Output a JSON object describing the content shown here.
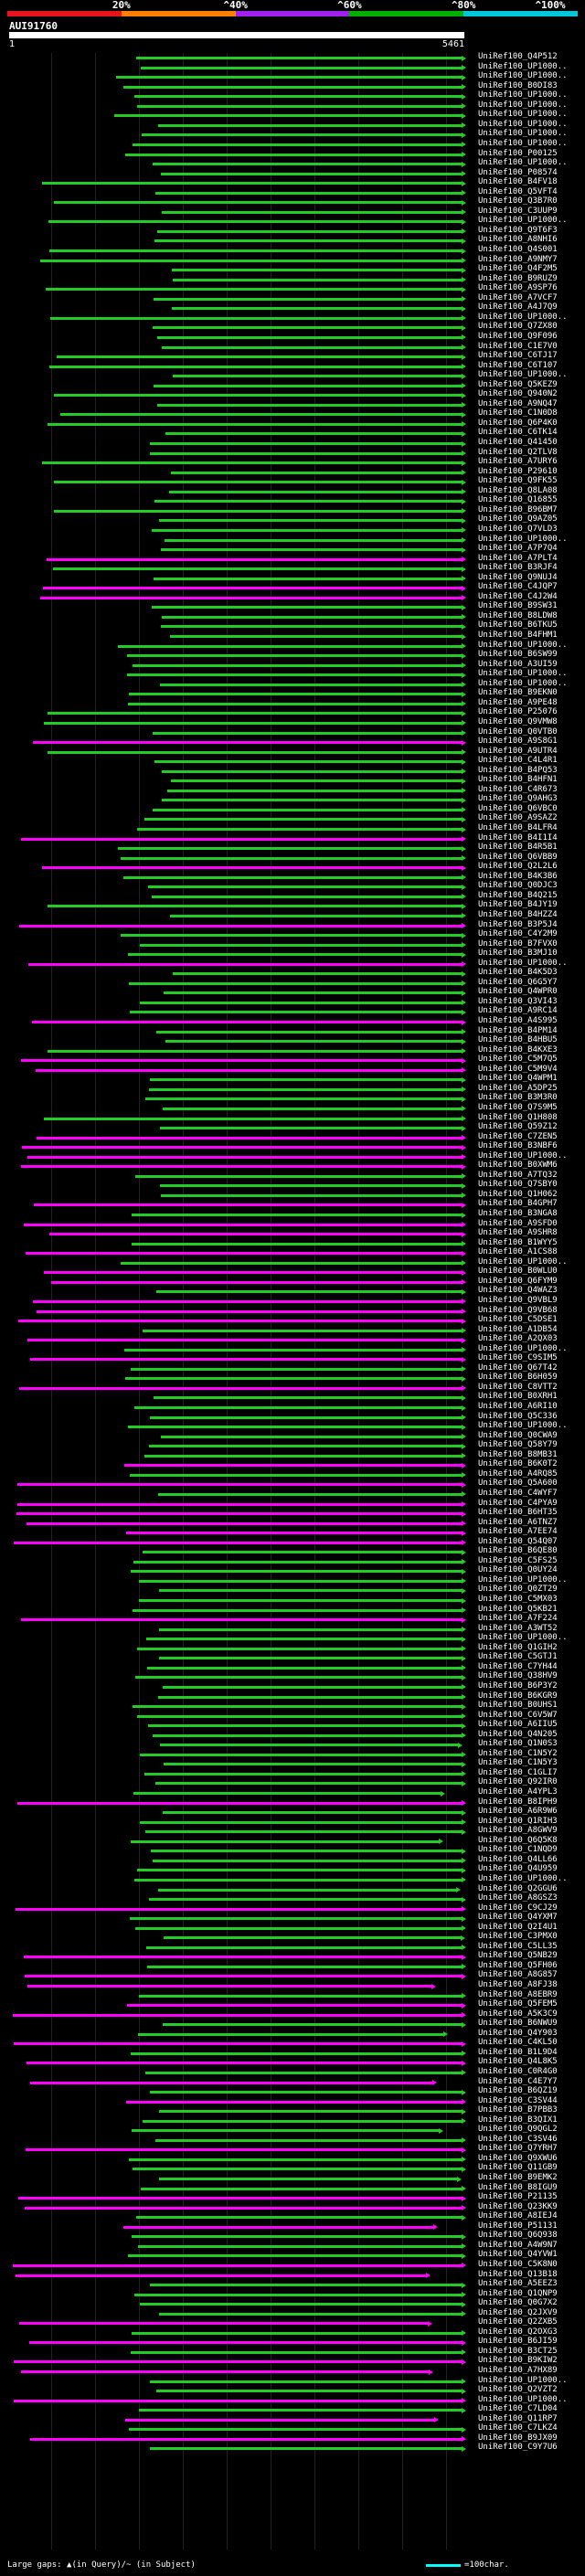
{
  "legend": {
    "labels": [
      "20%",
      "^40%",
      "^60%",
      "^80%",
      "^100%"
    ],
    "colors": [
      "#e8141d",
      "#ff8000",
      "#a020f0",
      "#00b000",
      "#00c8d8"
    ]
  },
  "query": {
    "id": "AUI91760",
    "start": "1",
    "end": "5461"
  },
  "hits": [
    "UniRef100_Q4P512",
    "UniRef100_UP1000..",
    "UniRef100_UP1000..",
    "UniRef100_B0DI83",
    "UniRef100_UP1000..",
    "UniRef100_UP1000..",
    "UniRef100_UP1000..",
    "UniRef100_UP1000..",
    "UniRef100_UP1000..",
    "UniRef100_UP1000..",
    "UniRef100_P00125",
    "UniRef100_UP1000..",
    "UniRef100_P08574",
    "UniRef100_B4FV18",
    "UniRef100_Q5VFT4",
    "UniRef100_Q3B7R0",
    "UniRef100_C3UUP9",
    "UniRef100_UP1000..",
    "UniRef100_Q9T6F3",
    "UniRef100_A8NHI6",
    "UniRef100_Q4S001",
    "UniRef100_A9NMY7",
    "UniRef100_Q4F2M5",
    "UniRef100_B9RUZ9",
    "UniRef100_A9SP76",
    "UniRef100_A7VCF7",
    "UniRef100_A4J7Q9",
    "UniRef100_UP1000..",
    "UniRef100_Q7ZX80",
    "UniRef100_Q9F096",
    "UniRef100_C1E7V0",
    "UniRef100_C6TJ17",
    "UniRef100_C6T107",
    "UniRef100_UP1000..",
    "UniRef100_Q5KEZ9",
    "UniRef100_Q940N2",
    "UniRef100_A9NQ47",
    "UniRef100_C1N0D8",
    "UniRef100_Q6P4K0",
    "UniRef100_C6TK14",
    "UniRef100_Q41450",
    "UniRef100_Q2TLV8",
    "UniRef100_A7URY6",
    "UniRef100_P29610",
    "UniRef100_Q9FK55",
    "UniRef100_Q8LA08",
    "UniRef100_Q16855",
    "UniRef100_B96BM7",
    "UniRef100_Q9AZ05",
    "UniRef100_Q7VLD3",
    "UniRef100_UP1000..",
    "UniRef100_A7P7Q4",
    "UniRef100_A7PLT4",
    "UniRef100_B3RJF4",
    "UniRef100_Q9NUJ4",
    "UniRef100_C4JQP7",
    "UniRef100_C4J2W4",
    "UniRef100_B9SW31",
    "UniRef100_B8LDW8",
    "UniRef100_B6TKU5",
    "UniRef100_B4FHM1",
    "UniRef100_UP1000..",
    "UniRef100_B6SW99",
    "UniRef100_A3UI59",
    "UniRef100_UP1000..",
    "UniRef100_UP1000..",
    "UniRef100_B9EKN0",
    "UniRef100_A9PE48",
    "UniRef100_P25076",
    "UniRef100_Q9VMW8",
    "UniRef100_Q0VTB0",
    "UniRef100_A9S8G1",
    "UniRef100_A9UTR4",
    "UniRef100_C4L4R1",
    "UniRef100_B4PQ53",
    "UniRef100_B4HFN1",
    "UniRef100_C4R673",
    "UniRef100_Q9AHG3",
    "UniRef100_Q6VBC0",
    "UniRef100_A9SAZ2",
    "UniRef100_B4LFR4",
    "UniRef100_B4I1I4",
    "UniRef100_B4R5B1",
    "UniRef100_Q6VBB9",
    "UniRef100_Q2L2L6",
    "UniRef100_B4K3B6",
    "UniRef100_Q0DJC3",
    "UniRef100_B4Q215",
    "UniRef100_B4JY19",
    "UniRef100_B4HZZ4",
    "UniRef100_B3P5J4",
    "UniRef100_C4Y2M9",
    "UniRef100_B7FVX0",
    "UniRef100_B3MJ10",
    "UniRef100_UP1000..",
    "UniRef100_B4K5D3",
    "UniRef100_Q6G5Y7",
    "UniRef100_Q4WPR0",
    "UniRef100_Q3VI43",
    "UniRef100_A9RC14",
    "UniRef100_A4S995",
    "UniRef100_B4PM14",
    "UniRef100_B4HBU5",
    "UniRef100_B4KXE3",
    "UniRef100_C5M7Q5",
    "UniRef100_C5M9V4",
    "UniRef100_Q4WPM1",
    "UniRef100_A5DP25",
    "UniRef100_B3M3R0",
    "UniRef100_Q7S9M5",
    "UniRef100_Q1H808",
    "UniRef100_Q59Z12",
    "UniRef100_C7ZEN5",
    "UniRef100_B3NBF6",
    "UniRef100_UP1000..",
    "UniRef100_B0XWM6",
    "UniRef100_A7TQ32",
    "UniRef100_Q7SBY0",
    "UniRef100_Q1H062",
    "UniRef100_B4GPH7",
    "UniRef100_B3NGA8",
    "UniRef100_A9SFD0",
    "UniRef100_A9SHR8",
    "UniRef100_B1WYY5",
    "UniRef100_A1CS88",
    "UniRef100_UP1000..",
    "UniRef100_B0WLU0",
    "UniRef100_Q6FYM9",
    "UniRef100_Q4WAZ3",
    "UniRef100_Q9VBL9",
    "UniRef100_Q9VB68",
    "UniRef100_C5DSE1",
    "UniRef100_A1DB54",
    "UniRef100_A2QX03",
    "UniRef100_UP1000..",
    "UniRef100_C9SIM5",
    "UniRef100_Q67T42",
    "UniRef100_B6H059",
    "UniRef100_C8VTT2",
    "UniRef100_B0XRH1",
    "UniRef100_A6RI10",
    "UniRef100_Q5C336",
    "UniRef100_UP1000..",
    "UniRef100_Q0CWA9",
    "UniRef100_Q58Y79",
    "UniRef100_B8MB31",
    "UniRef100_B6K0T2",
    "UniRef100_A4RQ85",
    "UniRef100_Q5A600",
    "UniRef100_C4WYF7",
    "UniRef100_C4PYA9",
    "UniRef100_B6HT35",
    "UniRef100_A6TNZ7",
    "UniRef100_A7EE74",
    "UniRef100_Q54Q07",
    "UniRef100_B6QE80",
    "UniRef100_C5FS25",
    "UniRef100_Q0UY24",
    "UniRef100_UP1000..",
    "UniRef100_Q0ZT29",
    "UniRef100_C5MX03",
    "UniRef100_Q5KB21",
    "UniRef100_A7F224",
    "UniRef100_A3WT52",
    "UniRef100_UP1000..",
    "UniRef100_Q1GIH2",
    "UniRef100_C5GTJ1",
    "UniRef100_C7YH44",
    "UniRef100_Q38HV9",
    "UniRef100_B6P3Y2",
    "UniRef100_B6KGR9",
    "UniRef100_B0UHS1",
    "UniRef100_C6V5W7",
    "UniRef100_A6IIU5",
    "UniRef100_Q4N205",
    "UniRef100_Q1N0S3",
    "UniRef100_C1N5Y2",
    "UniRef100_C1N5Y3",
    "UniRef100_C1GLI7",
    "UniRef100_Q92IR0",
    "UniRef100_A4YPL3",
    "UniRef100_B8IPH9",
    "UniRef100_A6R9W6",
    "UniRef100_Q1RIH3",
    "UniRef100_A8GWV9",
    "UniRef100_Q6Q5K8",
    "UniRef100_C1NQD9",
    "UniRef100_Q4LL66",
    "UniRef100_Q4U959",
    "UniRef100_UP1000..",
    "UniRef100_Q2GGU6",
    "UniRef100_A8GSZ3",
    "UniRef100_C9CJ29",
    "UniRef100_Q4YXM7",
    "UniRef100_Q2I4U1",
    "UniRef100_C3PMX0",
    "UniRef100_C5LL35",
    "UniRef100_Q5NB29",
    "UniRef100_Q5FH06",
    "UniRef100_A8G857",
    "UniRef100_A8FJ38",
    "UniRef100_A8EBR9",
    "UniRef100_Q5FEM5",
    "UniRef100_A5K3C9",
    "UniRef100_B6NWU9",
    "UniRef100_Q4Y903",
    "UniRef100_C4KL50",
    "UniRef100_B1L9D4",
    "UniRef100_Q4L8K5",
    "UniRef100_C0R4G0",
    "UniRef100_C4E7Y7",
    "UniRef100_B6QZ19",
    "UniRef100_C3SV44",
    "UniRef100_B7PBB3",
    "UniRef100_B3QIX1",
    "UniRef100_Q9QGL2",
    "UniRef100_C3SV46",
    "UniRef100_Q7YRH7",
    "UniRef100_Q9XWU6",
    "UniRef100_Q11GB9",
    "UniRef100_B9EMK2",
    "UniRef100_B8IGU9",
    "UniRef100_P21135",
    "UniRef100_Q23KK9",
    "UniRef100_A8IEJ4",
    "UniRef100_P51131",
    "UniRef100_Q6Q938",
    "UniRef100_A4W9N7",
    "UniRef100_Q4YVW1",
    "UniRef100_C5K8N0",
    "UniRef100_Q13B18",
    "UniRef100_A5EEZ3",
    "UniRef100_Q1QNP9",
    "UniRef100_Q0G7X2",
    "UniRef100_Q2JXV9",
    "UniRef100_Q2ZXB5",
    "UniRef100_Q2OXG3",
    "UniRef100_B6JI59",
    "UniRef100_B3CT25",
    "UniRef100_B9KIW2",
    "UniRef100_A7HX89",
    "UniRef100_UP1000..",
    "UniRef100_Q2VZT2",
    "UniRef100_UP1000..",
    "UniRef100_C7LD04",
    "UniRef100_Q11RP7",
    "UniRef100_C7LKZ4",
    "UniRef100_B9JX09",
    "UniRef100_C9Y7U6"
  ],
  "footer": {
    "text": "Large gaps: ▲(in Query)/~ (in Subject)",
    "scale_text": "=100char."
  }
}
